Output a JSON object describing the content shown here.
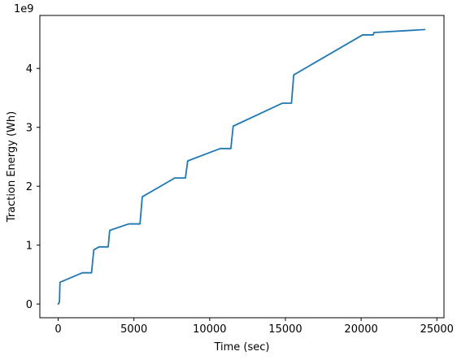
{
  "chart_data": {
    "type": "line",
    "xlabel": "Time (sec)",
    "ylabel": "Traction Energy (Wh)",
    "y_offset_label": "1e9",
    "xlim": [
      -1212,
      25470
    ],
    "ylim": [
      -0.233,
      4.9
    ],
    "x_ticks": [
      0,
      5000,
      10000,
      15000,
      20000,
      25000
    ],
    "x_tick_labels": [
      "0",
      "5000",
      "10000",
      "15000",
      "20000",
      "25000"
    ],
    "y_ticks": [
      0,
      1,
      2,
      3,
      4
    ],
    "y_tick_labels": [
      "0",
      "1",
      "2",
      "3",
      "4"
    ],
    "grid": false,
    "legend": "none",
    "colors": {
      "line": "#1f77b4",
      "axes": "#000000",
      "background": "#ffffff"
    },
    "series": [
      {
        "x": [
          0,
          80,
          120,
          1600,
          2200,
          2350,
          2700,
          3300,
          3400,
          4650,
          5400,
          5550,
          7700,
          8400,
          8550,
          10700,
          11400,
          11550,
          14800,
          15400,
          15550,
          20100,
          20800,
          20850,
          24200
        ],
        "y": [
          0.0,
          0.03,
          0.37,
          0.53,
          0.53,
          0.92,
          0.97,
          0.97,
          1.25,
          1.36,
          1.36,
          1.82,
          2.14,
          2.14,
          2.43,
          2.64,
          2.64,
          3.02,
          3.41,
          3.41,
          3.89,
          4.57,
          4.57,
          4.61,
          4.66
        ]
      }
    ]
  }
}
